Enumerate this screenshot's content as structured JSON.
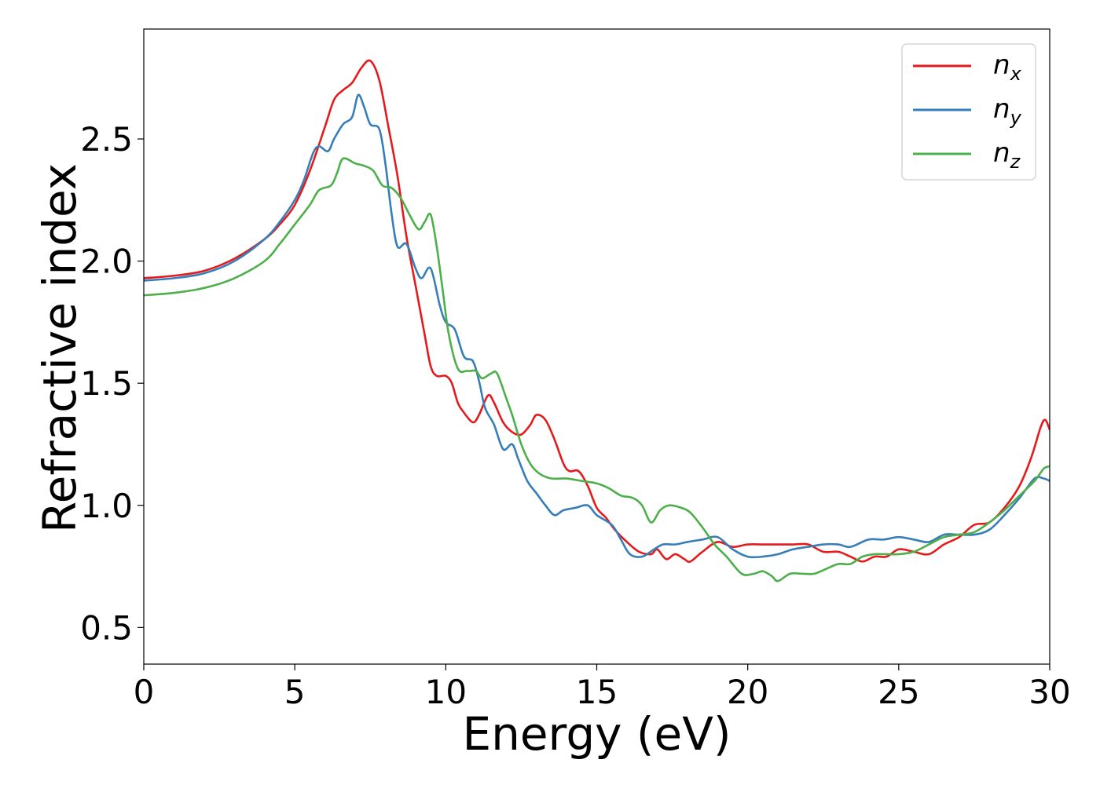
{
  "chart_data": {
    "type": "line",
    "xlabel": "Energy (eV)",
    "ylabel": "Refractive index",
    "xlim": [
      0,
      30
    ],
    "ylim": [
      0.35,
      2.95
    ],
    "xticks": [
      0,
      5,
      10,
      15,
      20,
      25,
      30
    ],
    "xtick_labels": [
      "0",
      "5",
      "10",
      "15",
      "20",
      "25",
      "30"
    ],
    "yticks": [
      0.5,
      1.0,
      1.5,
      2.0,
      2.5
    ],
    "ytick_labels": [
      "0.5",
      "1.0",
      "1.5",
      "2.0",
      "2.5"
    ],
    "grid": false,
    "legend_position": "top-right",
    "series": [
      {
        "name": "n_x",
        "legend_main": "n",
        "legend_sub": "x",
        "color": "#e41a1c",
        "points": [
          [
            0,
            1.93
          ],
          [
            1,
            1.94
          ],
          [
            2,
            1.96
          ],
          [
            3,
            2.01
          ],
          [
            4,
            2.09
          ],
          [
            4.5,
            2.15
          ],
          [
            5,
            2.23
          ],
          [
            5.5,
            2.37
          ],
          [
            6,
            2.55
          ],
          [
            6.3,
            2.66
          ],
          [
            6.6,
            2.7
          ],
          [
            6.9,
            2.73
          ],
          [
            7.2,
            2.79
          ],
          [
            7.5,
            2.82
          ],
          [
            7.8,
            2.74
          ],
          [
            8.1,
            2.55
          ],
          [
            8.4,
            2.35
          ],
          [
            8.7,
            2.1
          ],
          [
            9.0,
            1.9
          ],
          [
            9.3,
            1.7
          ],
          [
            9.5,
            1.57
          ],
          [
            9.7,
            1.53
          ],
          [
            10.0,
            1.53
          ],
          [
            10.2,
            1.5
          ],
          [
            10.4,
            1.42
          ],
          [
            10.6,
            1.38
          ],
          [
            10.9,
            1.34
          ],
          [
            11.1,
            1.37
          ],
          [
            11.4,
            1.45
          ],
          [
            11.6,
            1.42
          ],
          [
            11.9,
            1.34
          ],
          [
            12.2,
            1.3
          ],
          [
            12.5,
            1.29
          ],
          [
            12.8,
            1.33
          ],
          [
            13.0,
            1.37
          ],
          [
            13.3,
            1.35
          ],
          [
            13.6,
            1.27
          ],
          [
            13.9,
            1.17
          ],
          [
            14.1,
            1.14
          ],
          [
            14.4,
            1.14
          ],
          [
            14.7,
            1.08
          ],
          [
            15.0,
            0.99
          ],
          [
            15.3,
            0.95
          ],
          [
            15.6,
            0.9
          ],
          [
            16.0,
            0.85
          ],
          [
            16.4,
            0.81
          ],
          [
            16.8,
            0.8
          ],
          [
            17.0,
            0.82
          ],
          [
            17.3,
            0.78
          ],
          [
            17.6,
            0.8
          ],
          [
            17.9,
            0.78
          ],
          [
            18.1,
            0.77
          ],
          [
            18.5,
            0.81
          ],
          [
            19.0,
            0.85
          ],
          [
            19.5,
            0.83
          ],
          [
            20.0,
            0.84
          ],
          [
            20.5,
            0.84
          ],
          [
            21.0,
            0.84
          ],
          [
            21.5,
            0.84
          ],
          [
            22.0,
            0.84
          ],
          [
            22.5,
            0.81
          ],
          [
            23.0,
            0.81
          ],
          [
            23.4,
            0.79
          ],
          [
            23.8,
            0.77
          ],
          [
            24.2,
            0.79
          ],
          [
            24.6,
            0.79
          ],
          [
            25.0,
            0.82
          ],
          [
            25.5,
            0.81
          ],
          [
            26.0,
            0.8
          ],
          [
            26.5,
            0.84
          ],
          [
            27.0,
            0.87
          ],
          [
            27.5,
            0.92
          ],
          [
            28.0,
            0.93
          ],
          [
            28.5,
            0.99
          ],
          [
            29.0,
            1.08
          ],
          [
            29.4,
            1.2
          ],
          [
            29.7,
            1.32
          ],
          [
            29.85,
            1.35
          ],
          [
            30,
            1.31
          ]
        ]
      },
      {
        "name": "n_y",
        "legend_main": "n",
        "legend_sub": "y",
        "color": "#377eb8",
        "points": [
          [
            0,
            1.92
          ],
          [
            1,
            1.93
          ],
          [
            2,
            1.95
          ],
          [
            3,
            2.0
          ],
          [
            4,
            2.09
          ],
          [
            4.5,
            2.16
          ],
          [
            5,
            2.25
          ],
          [
            5.3,
            2.33
          ],
          [
            5.6,
            2.44
          ],
          [
            5.8,
            2.47
          ],
          [
            6.1,
            2.45
          ],
          [
            6.3,
            2.5
          ],
          [
            6.6,
            2.56
          ],
          [
            6.9,
            2.59
          ],
          [
            7.1,
            2.68
          ],
          [
            7.3,
            2.63
          ],
          [
            7.5,
            2.56
          ],
          [
            7.8,
            2.54
          ],
          [
            8.0,
            2.4
          ],
          [
            8.2,
            2.2
          ],
          [
            8.4,
            2.06
          ],
          [
            8.7,
            2.07
          ],
          [
            9.0,
            1.97
          ],
          [
            9.2,
            1.93
          ],
          [
            9.5,
            1.97
          ],
          [
            9.8,
            1.82
          ],
          [
            10.0,
            1.75
          ],
          [
            10.3,
            1.72
          ],
          [
            10.6,
            1.61
          ],
          [
            10.9,
            1.59
          ],
          [
            11.1,
            1.51
          ],
          [
            11.3,
            1.4
          ],
          [
            11.6,
            1.33
          ],
          [
            11.9,
            1.23
          ],
          [
            12.2,
            1.25
          ],
          [
            12.4,
            1.19
          ],
          [
            12.7,
            1.1
          ],
          [
            13.0,
            1.05
          ],
          [
            13.3,
            1.0
          ],
          [
            13.6,
            0.96
          ],
          [
            13.9,
            0.98
          ],
          [
            14.3,
            0.99
          ],
          [
            14.7,
            1.0
          ],
          [
            15.0,
            0.96
          ],
          [
            15.5,
            0.92
          ],
          [
            15.8,
            0.86
          ],
          [
            16.1,
            0.8
          ],
          [
            16.5,
            0.79
          ],
          [
            16.9,
            0.82
          ],
          [
            17.2,
            0.84
          ],
          [
            17.6,
            0.84
          ],
          [
            18.0,
            0.85
          ],
          [
            18.5,
            0.86
          ],
          [
            19.0,
            0.87
          ],
          [
            19.5,
            0.82
          ],
          [
            20.0,
            0.79
          ],
          [
            20.5,
            0.79
          ],
          [
            21.0,
            0.8
          ],
          [
            21.5,
            0.82
          ],
          [
            22.0,
            0.83
          ],
          [
            22.5,
            0.84
          ],
          [
            23.0,
            0.84
          ],
          [
            23.4,
            0.83
          ],
          [
            24.0,
            0.86
          ],
          [
            24.5,
            0.86
          ],
          [
            25.0,
            0.87
          ],
          [
            25.5,
            0.86
          ],
          [
            26.0,
            0.85
          ],
          [
            26.5,
            0.88
          ],
          [
            27.0,
            0.88
          ],
          [
            27.5,
            0.88
          ],
          [
            28.0,
            0.9
          ],
          [
            28.5,
            0.96
          ],
          [
            29.0,
            1.03
          ],
          [
            29.5,
            1.11
          ],
          [
            29.8,
            1.11
          ],
          [
            30,
            1.1
          ]
        ]
      },
      {
        "name": "n_z",
        "legend_main": "n",
        "legend_sub": "z",
        "color": "#4daf4a",
        "points": [
          [
            0,
            1.86
          ],
          [
            1,
            1.87
          ],
          [
            2,
            1.89
          ],
          [
            3,
            1.93
          ],
          [
            4,
            2.0
          ],
          [
            4.5,
            2.07
          ],
          [
            5,
            2.15
          ],
          [
            5.5,
            2.23
          ],
          [
            5.8,
            2.29
          ],
          [
            6.2,
            2.31
          ],
          [
            6.4,
            2.36
          ],
          [
            6.6,
            2.42
          ],
          [
            7.0,
            2.4
          ],
          [
            7.3,
            2.39
          ],
          [
            7.6,
            2.37
          ],
          [
            7.9,
            2.31
          ],
          [
            8.2,
            2.3
          ],
          [
            8.5,
            2.26
          ],
          [
            8.8,
            2.19
          ],
          [
            9.1,
            2.13
          ],
          [
            9.3,
            2.16
          ],
          [
            9.5,
            2.19
          ],
          [
            9.7,
            2.06
          ],
          [
            9.9,
            1.88
          ],
          [
            10.1,
            1.7
          ],
          [
            10.4,
            1.56
          ],
          [
            10.7,
            1.55
          ],
          [
            11.0,
            1.55
          ],
          [
            11.2,
            1.52
          ],
          [
            11.5,
            1.54
          ],
          [
            11.7,
            1.54
          ],
          [
            12.0,
            1.44
          ],
          [
            12.2,
            1.37
          ],
          [
            12.5,
            1.25
          ],
          [
            12.8,
            1.17
          ],
          [
            13.1,
            1.13
          ],
          [
            13.5,
            1.11
          ],
          [
            14.0,
            1.11
          ],
          [
            14.5,
            1.1
          ],
          [
            15.0,
            1.09
          ],
          [
            15.4,
            1.07
          ],
          [
            15.8,
            1.04
          ],
          [
            16.2,
            1.03
          ],
          [
            16.5,
            1.0
          ],
          [
            16.8,
            0.93
          ],
          [
            17.1,
            0.98
          ],
          [
            17.4,
            1.0
          ],
          [
            17.8,
            0.99
          ],
          [
            18.1,
            0.97
          ],
          [
            18.5,
            0.91
          ],
          [
            18.9,
            0.84
          ],
          [
            19.3,
            0.79
          ],
          [
            19.8,
            0.72
          ],
          [
            20.2,
            0.72
          ],
          [
            20.5,
            0.73
          ],
          [
            20.8,
            0.71
          ],
          [
            21.0,
            0.69
          ],
          [
            21.4,
            0.72
          ],
          [
            21.8,
            0.72
          ],
          [
            22.2,
            0.72
          ],
          [
            22.6,
            0.74
          ],
          [
            23.0,
            0.76
          ],
          [
            23.4,
            0.76
          ],
          [
            23.8,
            0.79
          ],
          [
            24.2,
            0.8
          ],
          [
            24.6,
            0.8
          ],
          [
            25.0,
            0.8
          ],
          [
            25.5,
            0.81
          ],
          [
            26.0,
            0.84
          ],
          [
            26.5,
            0.87
          ],
          [
            27.0,
            0.88
          ],
          [
            27.5,
            0.89
          ],
          [
            28.0,
            0.93
          ],
          [
            28.5,
            0.98
          ],
          [
            29.0,
            1.04
          ],
          [
            29.5,
            1.1
          ],
          [
            29.8,
            1.15
          ],
          [
            30,
            1.16
          ]
        ]
      }
    ]
  }
}
